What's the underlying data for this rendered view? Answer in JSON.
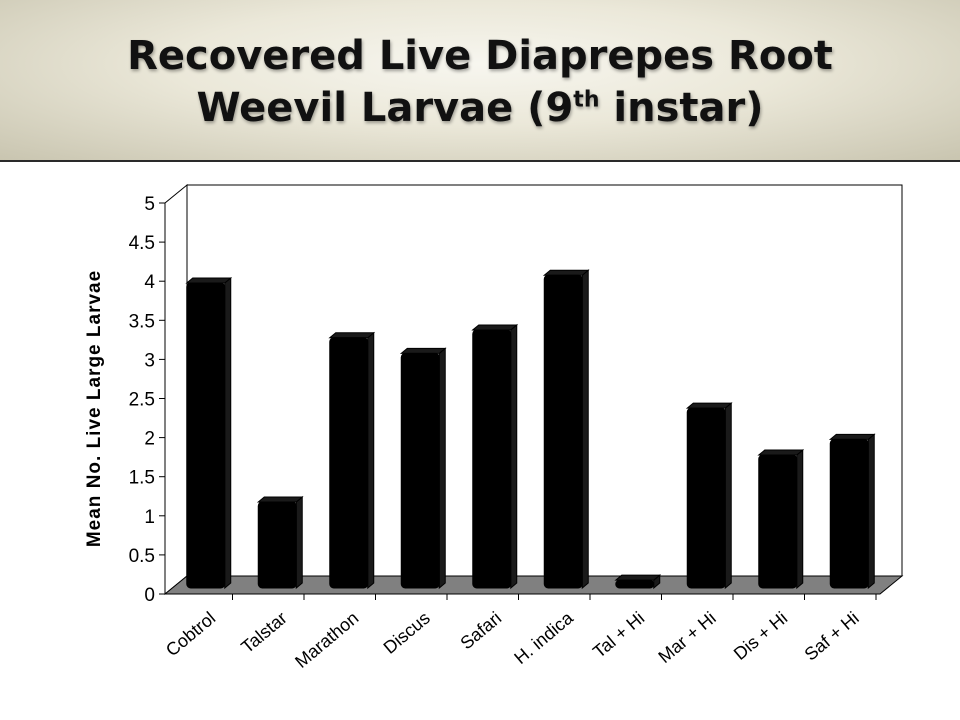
{
  "slide": {
    "title_line1": "Recovered Live Diaprepes Root",
    "title_line2_pre": "Weevil Larvae (9",
    "title_line2_sup": "th",
    "title_line2_post": " instar)"
  },
  "chart_data": {
    "type": "bar",
    "style": "3d-column",
    "ylabel": "Mean No. Live Large Larvae",
    "xlabel": "",
    "ylim": [
      0,
      5
    ],
    "yticks": [
      0,
      0.5,
      1,
      1.5,
      2,
      2.5,
      3,
      3.5,
      4,
      4.5,
      5
    ],
    "ytick_labels": [
      "0",
      "0.5",
      "1",
      "1.5",
      "2",
      "2.5",
      "3",
      "3.5",
      "4",
      "4.5",
      "5"
    ],
    "categories": [
      "Cobtrol",
      "Talstar",
      "Marathon",
      "Discus",
      "Safari",
      "H. indica",
      "Tal + Hi",
      "Mar + Hi",
      "Dis + Hi",
      "Saf + Hi"
    ],
    "values": [
      3.9,
      1.1,
      3.2,
      3.0,
      3.3,
      4.0,
      0.1,
      2.3,
      1.7,
      1.9
    ],
    "bar_color": "#000000",
    "floor_color": "#808080",
    "grid": false,
    "legend": "none"
  }
}
